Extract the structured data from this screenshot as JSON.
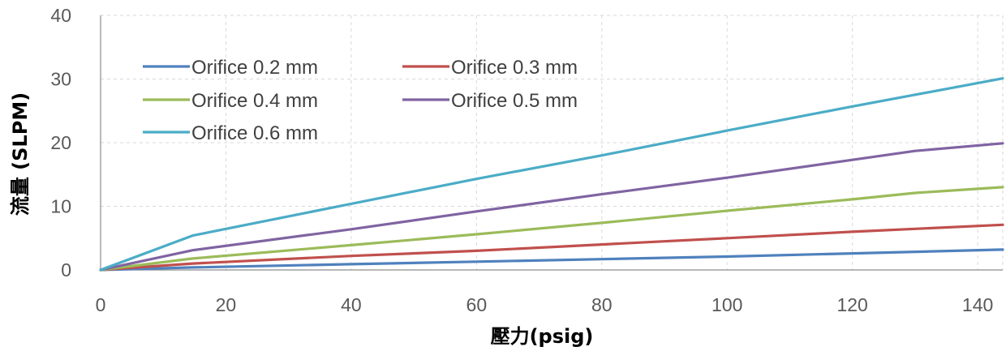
{
  "chart_data": {
    "type": "line",
    "xlabel": "壓力(psig)",
    "ylabel": "流量 (SLPM)",
    "xlim": [
      0,
      144
    ],
    "ylim": [
      0,
      40
    ],
    "x_ticks": [
      "0",
      "20",
      "40",
      "60",
      "80",
      "100",
      "120",
      "140"
    ],
    "y_ticks": [
      "0",
      "10",
      "20",
      "30",
      "40"
    ],
    "grid": true,
    "legend_position": "top-left",
    "series": [
      {
        "name": "Orifice 0.2 mm",
        "color": "#4F81BD",
        "x": [
          0,
          14.7,
          40,
          60,
          80,
          100,
          120,
          144
        ],
        "values": [
          0,
          0.4,
          0.9,
          1.3,
          1.7,
          2.1,
          2.6,
          3.2
        ]
      },
      {
        "name": "Orifice 0.3 mm",
        "color": "#C0504D",
        "x": [
          0,
          14.7,
          40,
          60,
          80,
          100,
          120,
          144
        ],
        "values": [
          0,
          1.0,
          2.2,
          3.0,
          4.0,
          5.0,
          6.0,
          7.1
        ]
      },
      {
        "name": "Orifice 0.4 mm",
        "color": "#9BBB59",
        "x": [
          0,
          14.7,
          40,
          60,
          80,
          100,
          120,
          130,
          144
        ],
        "values": [
          0,
          1.8,
          3.9,
          5.6,
          7.4,
          9.3,
          11.1,
          12.1,
          13.0
        ]
      },
      {
        "name": "Orifice 0.5 mm",
        "color": "#8064A2",
        "x": [
          0,
          14.7,
          40,
          60,
          80,
          100,
          120,
          130,
          144
        ],
        "values": [
          0,
          3.1,
          6.4,
          9.2,
          11.9,
          14.5,
          17.3,
          18.7,
          19.9
        ]
      },
      {
        "name": "Orifice 0.6 mm",
        "color": "#4BACC6",
        "x": [
          0,
          14.7,
          40,
          60,
          80,
          100,
          120,
          144
        ],
        "values": [
          0,
          5.4,
          10.4,
          14.3,
          18.0,
          21.9,
          25.7,
          30.1
        ]
      }
    ]
  }
}
